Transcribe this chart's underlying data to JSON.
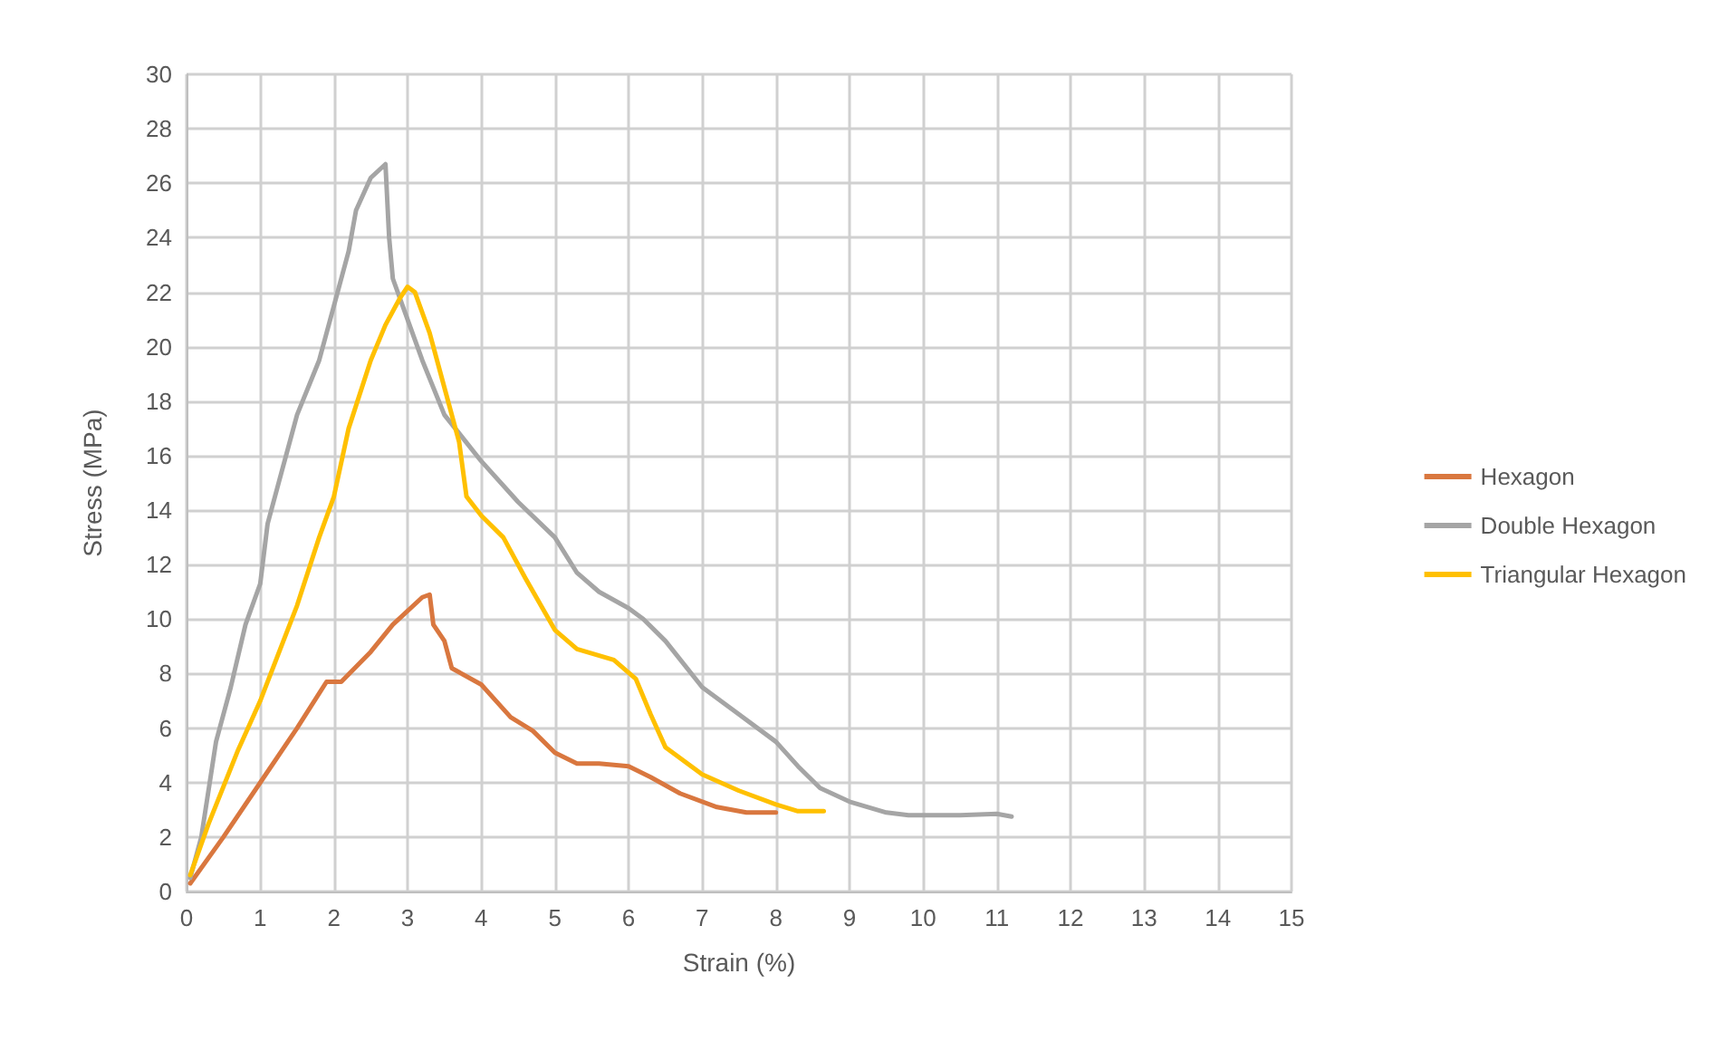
{
  "chart_data": {
    "type": "line",
    "xlabel": "Strain (%)",
    "ylabel": "Stress (MPa)",
    "xlim": [
      0,
      15
    ],
    "xticks": [
      0,
      1,
      2,
      3,
      4,
      5,
      6,
      7,
      8,
      9,
      10,
      11,
      12,
      13,
      14,
      15
    ],
    "ylim": [
      0,
      30
    ],
    "yticks": [
      0,
      2,
      4,
      6,
      8,
      10,
      12,
      14,
      16,
      18,
      20,
      22,
      24,
      26,
      28,
      30
    ],
    "grid": true,
    "legend": "right",
    "marker": "none",
    "line_style": "solid",
    "series": [
      {
        "name": "Hexagon",
        "color": "#d9773f",
        "x": [
          0.05,
          0.5,
          1,
          1.5,
          1.9,
          2.1,
          2.5,
          2.8,
          3.2,
          3.3,
          3.35,
          3.5,
          3.6,
          4,
          4.4,
          4.7,
          5,
          5.3,
          5.6,
          6,
          6.3,
          6.7,
          7.2,
          7.6,
          8
        ],
        "values": [
          0.3,
          2,
          4,
          6,
          7.7,
          7.7,
          8.8,
          9.8,
          10.8,
          10.9,
          9.8,
          9.2,
          8.2,
          7.6,
          6.4,
          5.9,
          5.1,
          4.7,
          4.7,
          4.6,
          4.2,
          3.6,
          3.1,
          2.9,
          2.9
        ]
      },
      {
        "name": "Double Hexagon",
        "color": "#a5a5a5",
        "x": [
          0.05,
          0.2,
          0.4,
          0.6,
          0.8,
          1,
          1.1,
          1.3,
          1.5,
          1.8,
          2,
          2.2,
          2.3,
          2.5,
          2.7,
          2.75,
          2.8,
          3,
          3.2,
          3.5,
          4,
          4.5,
          5,
          5.3,
          5.6,
          6,
          6.2,
          6.5,
          7,
          7.5,
          8,
          8.3,
          8.6,
          9,
          9.5,
          9.8,
          10.5,
          11,
          11.2
        ],
        "values": [
          0.5,
          2,
          5.5,
          7.5,
          9.8,
          11.3,
          13.5,
          15.5,
          17.5,
          19.5,
          21.5,
          23.5,
          25,
          26.2,
          26.7,
          24,
          22.5,
          21,
          19.5,
          17.5,
          15.8,
          14.3,
          13,
          11.7,
          11,
          10.4,
          10,
          9.2,
          7.5,
          6.5,
          5.5,
          4.6,
          3.8,
          3.3,
          2.9,
          2.8,
          2.8,
          2.85,
          2.75
        ]
      },
      {
        "name": "Triangular Hexagon",
        "color": "#ffc000",
        "x": [
          0.05,
          0.3,
          0.7,
          1,
          1.5,
          1.8,
          2,
          2.2,
          2.5,
          2.7,
          2.9,
          3,
          3.1,
          3.3,
          3.5,
          3.7,
          3.8,
          4,
          4.3,
          4.6,
          5,
          5.3,
          5.8,
          6.1,
          6.3,
          6.5,
          7,
          7.5,
          8,
          8.3,
          8.65
        ],
        "values": [
          0.6,
          2.5,
          5.2,
          7,
          10.5,
          13,
          14.5,
          17,
          19.5,
          20.8,
          21.8,
          22.2,
          22,
          20.5,
          18.5,
          16.5,
          14.5,
          13.8,
          13,
          11.5,
          9.6,
          8.9,
          8.5,
          7.8,
          6.5,
          5.3,
          4.3,
          3.7,
          3.2,
          2.95,
          2.95
        ]
      }
    ]
  }
}
